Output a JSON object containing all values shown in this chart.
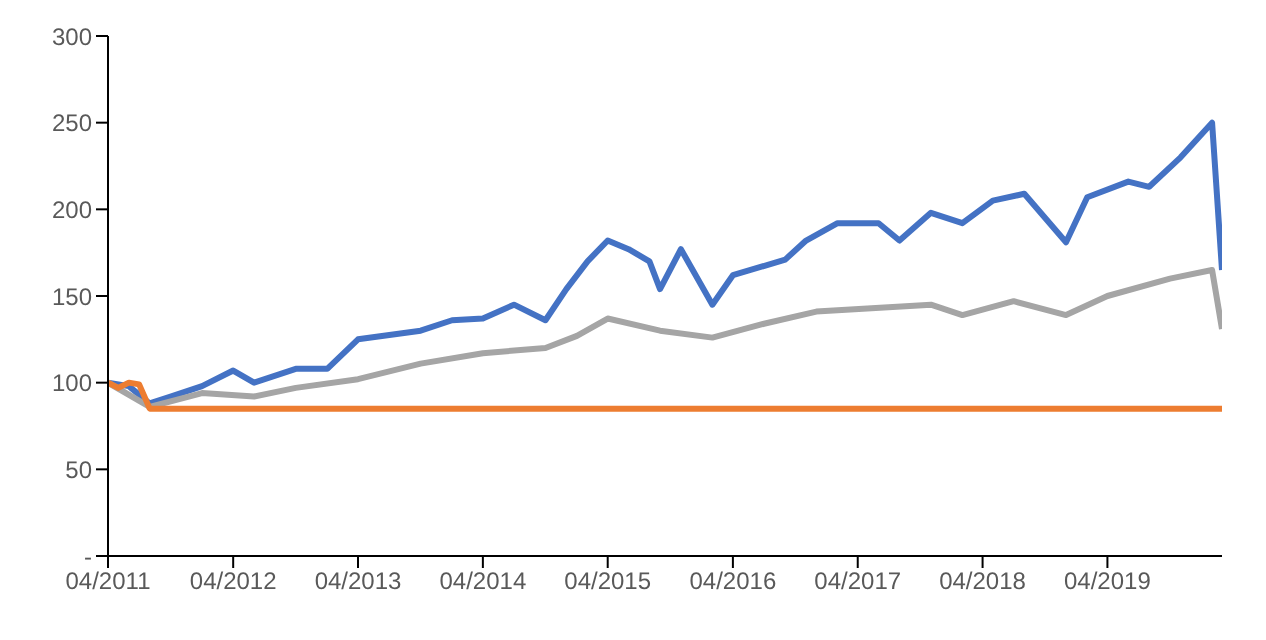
{
  "chart_data": {
    "type": "line",
    "xlim": [
      "2011-04",
      "2020-03"
    ],
    "ylim": [
      0,
      300
    ],
    "xticks": [
      {
        "value": "2011-04",
        "label": "04/2011"
      },
      {
        "value": "2012-04",
        "label": "04/2012"
      },
      {
        "value": "2013-04",
        "label": "04/2013"
      },
      {
        "value": "2014-04",
        "label": "04/2014"
      },
      {
        "value": "2015-04",
        "label": "04/2015"
      },
      {
        "value": "2016-04",
        "label": "04/2016"
      },
      {
        "value": "2017-04",
        "label": "04/2017"
      },
      {
        "value": "2018-04",
        "label": "04/2018"
      },
      {
        "value": "2019-04",
        "label": "04/2019"
      }
    ],
    "yticks": [
      {
        "value": 0,
        "label": "-"
      },
      50,
      100,
      150,
      200,
      250,
      300
    ],
    "grid": false,
    "legend": false,
    "marker": "none",
    "line_style": "solid",
    "series": [
      {
        "color": "#4472c4",
        "x": [
          "2011-04",
          "2011-06",
          "2011-08",
          "2011-10",
          "2012-01",
          "2012-04",
          "2012-06",
          "2012-10",
          "2013-01",
          "2013-04",
          "2013-10",
          "2014-01",
          "2014-04",
          "2014-07",
          "2014-10",
          "2014-12",
          "2015-02",
          "2015-04",
          "2015-06",
          "2015-08",
          "2015-09",
          "2015-11",
          "2016-02",
          "2016-04",
          "2016-09",
          "2016-11",
          "2017-02",
          "2017-06",
          "2017-08",
          "2017-11",
          "2018-02",
          "2018-05",
          "2018-08",
          "2018-12",
          "2019-02",
          "2019-06",
          "2019-08",
          "2019-11",
          "2020-02",
          "2020-03"
        ],
        "values": [
          100,
          98,
          88,
          92,
          98,
          107,
          100,
          108,
          108,
          125,
          130,
          136,
          137,
          145,
          136,
          154,
          170,
          182,
          177,
          170,
          154,
          177,
          145,
          162,
          171,
          182,
          192,
          192,
          182,
          198,
          192,
          205,
          209,
          181,
          207,
          216,
          213,
          230,
          250,
          165
        ]
      },
      {
        "color": "#a5a5a5",
        "x": [
          "2011-04",
          "2011-08",
          "2012-01",
          "2012-06",
          "2012-10",
          "2013-04",
          "2013-10",
          "2014-04",
          "2014-10",
          "2015-01",
          "2015-04",
          "2015-09",
          "2016-02",
          "2016-07",
          "2016-12",
          "2017-11",
          "2018-02",
          "2018-07",
          "2018-12",
          "2019-04",
          "2019-10",
          "2020-02",
          "2020-03"
        ],
        "values": [
          100,
          86,
          94,
          92,
          97,
          102,
          111,
          117,
          120,
          127,
          137,
          130,
          126,
          134,
          141,
          145,
          139,
          147,
          139,
          150,
          160,
          165,
          131
        ]
      },
      {
        "color": "#ed7d31",
        "x": [
          "2011-04",
          "2011-05",
          "2011-06",
          "2011-07",
          "2011-08",
          "2020-03"
        ],
        "values": [
          100,
          97,
          100,
          99,
          85,
          85
        ]
      }
    ]
  }
}
